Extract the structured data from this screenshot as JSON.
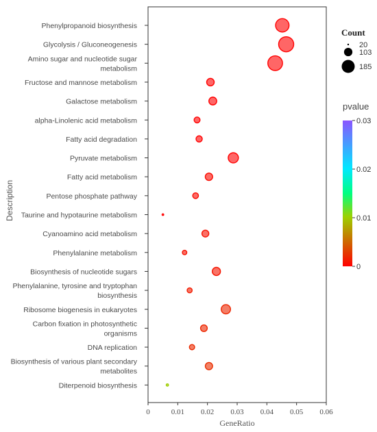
{
  "chart_data": {
    "type": "scatter",
    "title": "",
    "xlabel": "GeneRatio",
    "ylabel": "Description",
    "xlim": [
      0,
      0.06
    ],
    "xticks": [
      0,
      0.01,
      0.02,
      0.03,
      0.04,
      0.05,
      0.06
    ],
    "xtick_labels": [
      "0",
      "0.01",
      "0.02",
      "0.03",
      "0.04",
      "0.05",
      "0.06"
    ],
    "grid": true,
    "size_legend": {
      "title": "Count",
      "values": [
        20,
        103,
        185
      ],
      "labels": [
        "20",
        "103",
        "185"
      ]
    },
    "color_legend": {
      "title": "pvalue",
      "range": [
        0,
        0.03
      ],
      "ticks": [
        0,
        0.01,
        0.02,
        0.03
      ],
      "tick_labels": [
        "0",
        "0.01",
        "0.02",
        "0.03"
      ],
      "colors": [
        "#ff0000",
        "#9cd100",
        "#00ff80",
        "#00e8ff",
        "#8a55ff"
      ]
    },
    "points": [
      {
        "label": "Phenylpropanoid biosynthesis",
        "label_lines": [
          "Phenylpropanoid biosynthesis"
        ],
        "x": 0.0452,
        "count": 165,
        "pvalue": 0.0
      },
      {
        "label": "Glycolysis / Gluconeogenesis",
        "label_lines": [
          "Glycolysis / Gluconeogenesis"
        ],
        "x": 0.0465,
        "count": 185,
        "pvalue": 0.0
      },
      {
        "label": "Amino sugar and nucleotide sugar metabolism",
        "label_lines": [
          "Amino sugar and nucleotide sugar",
          "metabolism"
        ],
        "x": 0.0428,
        "count": 180,
        "pvalue": 0.0
      },
      {
        "label": "Fructose and mannose metabolism",
        "label_lines": [
          "Fructose and mannose metabolism"
        ],
        "x": 0.021,
        "count": 92,
        "pvalue": 0.0
      },
      {
        "label": "Galactose metabolism",
        "label_lines": [
          "Galactose metabolism"
        ],
        "x": 0.0218,
        "count": 96,
        "pvalue": 0.0
      },
      {
        "label": "alpha-Linolenic acid metabolism",
        "label_lines": [
          "alpha-Linolenic acid metabolism"
        ],
        "x": 0.0165,
        "count": 72,
        "pvalue": 0.0
      },
      {
        "label": "Fatty acid degradation",
        "label_lines": [
          "Fatty acid degradation"
        ],
        "x": 0.0172,
        "count": 76,
        "pvalue": 0.0
      },
      {
        "label": "Pyruvate metabolism",
        "label_lines": [
          "Pyruvate metabolism"
        ],
        "x": 0.0287,
        "count": 125,
        "pvalue": 0.0
      },
      {
        "label": "Fatty acid metabolism",
        "label_lines": [
          "Fatty acid metabolism"
        ],
        "x": 0.0205,
        "count": 90,
        "pvalue": 0.0005
      },
      {
        "label": "Pentose phosphate pathway",
        "label_lines": [
          "Pentose phosphate pathway"
        ],
        "x": 0.016,
        "count": 70,
        "pvalue": 0.0005
      },
      {
        "label": "Taurine and hypotaurine metabolism",
        "label_lines": [
          "Taurine and hypotaurine metabolism"
        ],
        "x": 0.005,
        "count": 20,
        "pvalue": 0.0
      },
      {
        "label": "Cyanoamino acid metabolism",
        "label_lines": [
          "Cyanoamino acid metabolism"
        ],
        "x": 0.0193,
        "count": 84,
        "pvalue": 0.0008
      },
      {
        "label": "Phenylalanine metabolism",
        "label_lines": [
          "Phenylalanine metabolism"
        ],
        "x": 0.0123,
        "count": 54,
        "pvalue": 0.0008
      },
      {
        "label": "Biosynthesis of nucleotide sugars",
        "label_lines": [
          "Biosynthesis of nucleotide sugars"
        ],
        "x": 0.023,
        "count": 100,
        "pvalue": 0.001
      },
      {
        "label": "Phenylalanine, tyrosine and tryptophan biosynthesis",
        "label_lines": [
          "Phenylalanine, tyrosine and tryptophan",
          "biosynthesis"
        ],
        "x": 0.014,
        "count": 61,
        "pvalue": 0.0013
      },
      {
        "label": "Ribosome biogenesis in eukaryotes",
        "label_lines": [
          "Ribosome biogenesis in eukaryotes"
        ],
        "x": 0.0262,
        "count": 114,
        "pvalue": 0.0018
      },
      {
        "label": "Carbon fixation in photosynthetic organisms",
        "label_lines": [
          "Carbon fixation in photosynthetic",
          "organisms"
        ],
        "x": 0.0188,
        "count": 82,
        "pvalue": 0.0018
      },
      {
        "label": "DNA replication",
        "label_lines": [
          "DNA replication"
        ],
        "x": 0.0148,
        "count": 64,
        "pvalue": 0.002
      },
      {
        "label": "Biosynthesis of various plant secondary metabolites",
        "label_lines": [
          "Biosynthesis of various plant secondary",
          "metabolites"
        ],
        "x": 0.0205,
        "count": 89,
        "pvalue": 0.0022
      },
      {
        "label": "Diterpenoid biosynthesis",
        "label_lines": [
          "Diterpenoid biosynthesis"
        ],
        "x": 0.0065,
        "count": 28,
        "pvalue": 0.0098
      }
    ]
  }
}
